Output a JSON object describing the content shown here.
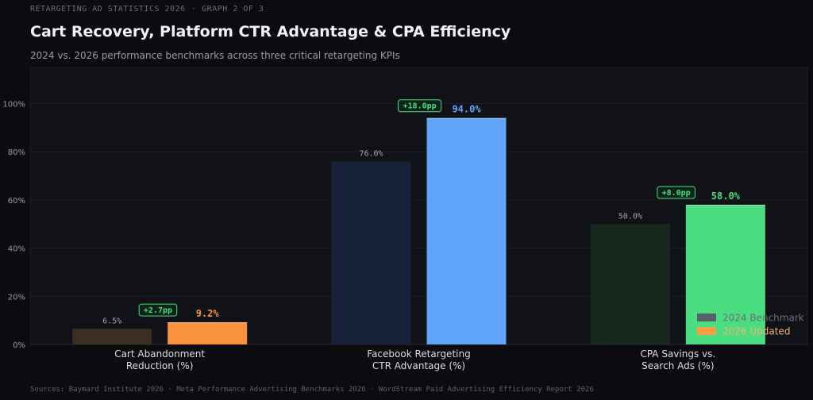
{
  "header": {
    "eyebrow_left": "RETARGETING AD STATISTICS 2026",
    "eyebrow_separator": "·",
    "eyebrow_right": "GRAPH 2 OF 3",
    "title": "Cart Recovery, Platform CTR Advantage & CPA Efficiency",
    "subtitle": "2024 vs. 2026 performance benchmarks across three critical retargeting KPIs"
  },
  "footer": {
    "source": "Sources: Baymard Institute 2026 · Meta Performance Advertising Benchmarks 2026 · WordStream Paid Advertising Efficiency Report 2026"
  },
  "chart_data": {
    "type": "bar",
    "categories": [
      [
        "Cart Abandonment",
        "Reduction (%)"
      ],
      [
        "Facebook Retargeting",
        "CTR Advantage (%)"
      ],
      [
        "CPA Savings vs.",
        "Search Ads (%)"
      ]
    ],
    "series": [
      {
        "name": "2024 Benchmark",
        "values": [
          6.5,
          76.0,
          50.0
        ],
        "labels": [
          "6.5%",
          "76.0%",
          "50.0%"
        ],
        "colors": [
          "#3a2f22",
          "#18213a",
          "#17281f"
        ]
      },
      {
        "name": "2026 Updated",
        "values": [
          9.2,
          94.0,
          58.0
        ],
        "labels": [
          "9.2%",
          "94.0%",
          "58.0%"
        ],
        "colors": [
          "#fb923c",
          "#60a5fa",
          "#4ade80"
        ]
      }
    ],
    "deltas": [
      "+2.7pp",
      "+18.0pp",
      "+8.0pp"
    ],
    "yticks": [
      "0%",
      "20%",
      "40%",
      "60%",
      "80%",
      "100%"
    ],
    "ytick_values": [
      0,
      20,
      40,
      60,
      80,
      100
    ],
    "ylim": [
      0,
      115
    ],
    "grid": true,
    "legend_position": "bottom-right",
    "legend_swatch_colors": [
      "#5a5e6a",
      "#f59e42"
    ],
    "legend_text_colors": [
      "#6a6e7a",
      "#f2b370"
    ],
    "delta_color": "#4ade80",
    "xlabel": "",
    "ylabel": ""
  }
}
